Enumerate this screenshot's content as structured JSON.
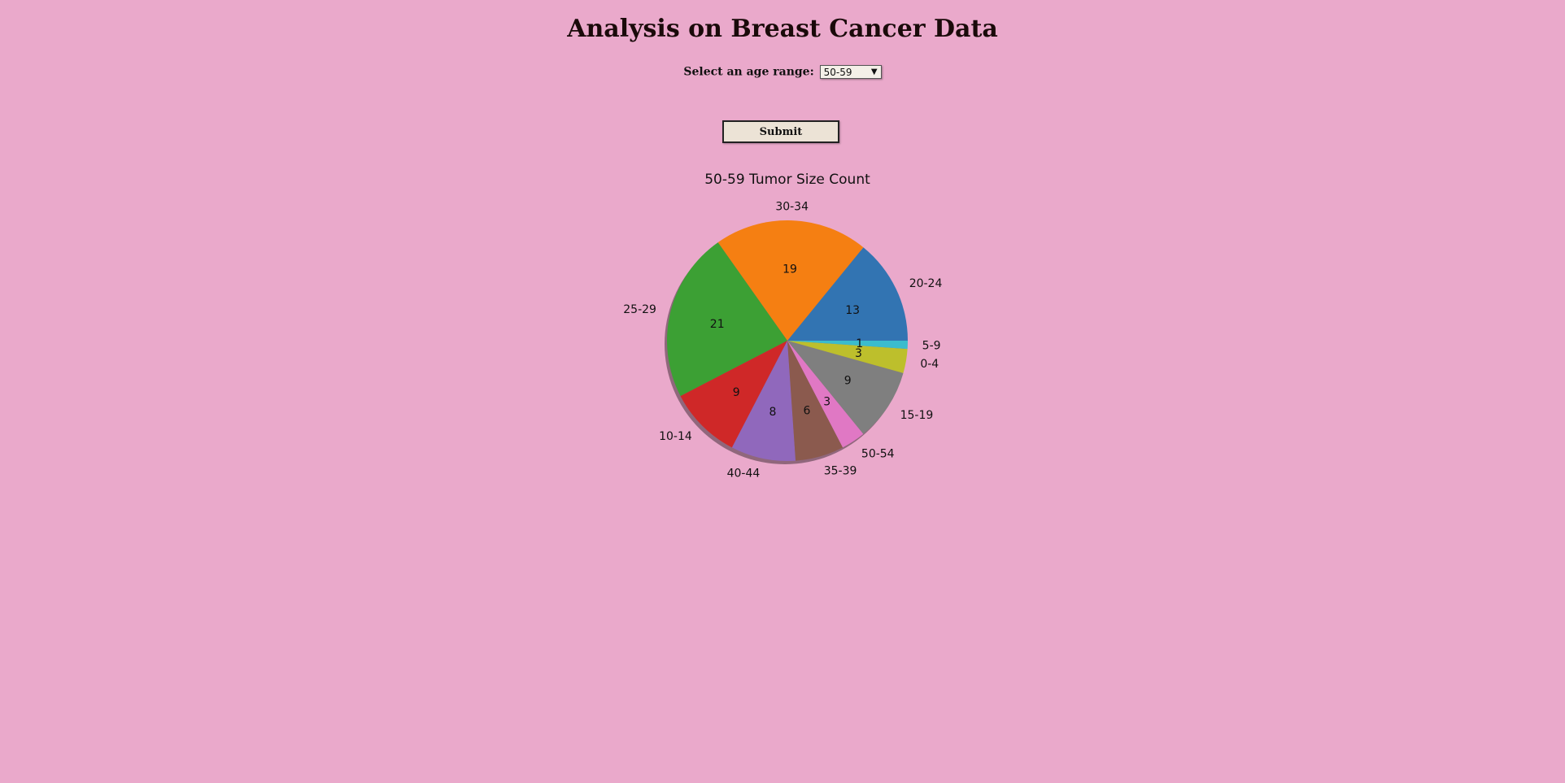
{
  "header": {
    "title": "Analysis on Breast Cancer Data"
  },
  "form": {
    "age_label": "Select an age range:",
    "age_selected": "50-59",
    "submit_label": "Submit"
  },
  "chart_data": {
    "type": "pie",
    "title": "50-59 Tumor Size Count",
    "shadow": true,
    "start_angle_deg": 0,
    "direction": "counterclockwise",
    "slices": [
      {
        "label": "20-24",
        "value": 13,
        "color": "#3274b2"
      },
      {
        "label": "30-34",
        "value": 19,
        "color": "#f57f12"
      },
      {
        "label": "25-29",
        "value": 21,
        "color": "#3ca034"
      },
      {
        "label": "10-14",
        "value": 9,
        "color": "#cf2828"
      },
      {
        "label": "40-44",
        "value": 8,
        "color": "#9068bc"
      },
      {
        "label": "35-39",
        "value": 6,
        "color": "#8b5a4e"
      },
      {
        "label": "50-54",
        "value": 3,
        "color": "#e078c4"
      },
      {
        "label": "15-19",
        "value": 9,
        "color": "#7f7f7f"
      },
      {
        "label": "0-4",
        "value": 3,
        "color": "#bdbf2c"
      },
      {
        "label": "5-9",
        "value": 1,
        "color": "#3bbccd"
      }
    ]
  }
}
